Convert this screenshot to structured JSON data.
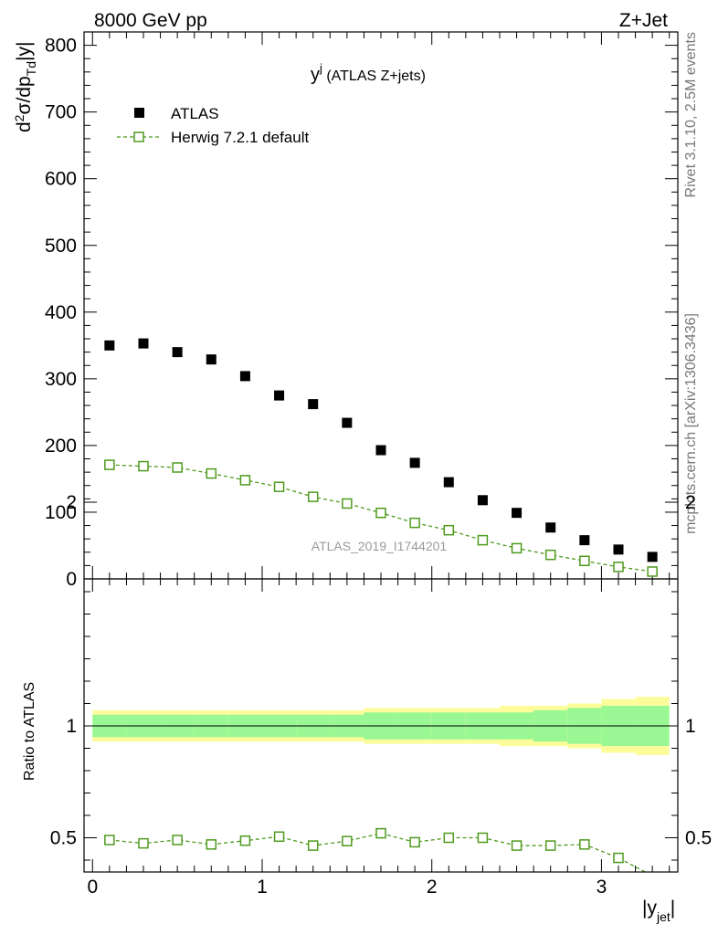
{
  "header": {
    "left": "8000 GeV pp",
    "right": "Z+Jet"
  },
  "side_labels": {
    "rivet": "Rivet 3.1.10,  2.5M events",
    "mcplots": "mcplots.cern.ch [arXiv:1306.3436]"
  },
  "chart_data": [
    {
      "type": "scatter",
      "panel": "main",
      "title_main": "y",
      "title_sup": "j",
      "title_rest": " (ATLAS Z+jets)",
      "ylabel": "d²σ/dp_Td|y|",
      "ylim": [
        0,
        820
      ],
      "yticks": [
        0,
        100,
        200,
        300,
        400,
        500,
        600,
        700,
        800
      ],
      "xlim": [
        -0.05,
        3.45
      ],
      "watermark": "ATLAS_2019_I1744201",
      "legend_position": "top-left",
      "x": [
        0.1,
        0.3,
        0.5,
        0.7,
        0.9,
        1.1,
        1.3,
        1.5,
        1.7,
        1.9,
        2.1,
        2.3,
        2.5,
        2.7,
        2.9,
        3.1,
        3.3
      ],
      "series": [
        {
          "name": "ATLAS",
          "color": "#000000",
          "marker": "filled-square",
          "values": [
            350,
            353,
            340,
            329,
            304,
            275,
            262,
            234,
            193,
            174,
            145,
            118,
            99,
            77,
            58,
            44,
            33
          ]
        },
        {
          "name": "Herwig 7.2.1 default",
          "color": "#4f9a1e",
          "marker": "open-square-dashed-line",
          "values": [
            171,
            169,
            167,
            158,
            148,
            138,
            123,
            113,
            99,
            84,
            73,
            58,
            46,
            36,
            27,
            18,
            11
          ]
        }
      ]
    },
    {
      "type": "line",
      "panel": "ratio",
      "ylabel": "Ratio to ATLAS",
      "xlabel": "|y_jet|",
      "ylim": [
        0.34,
        2.2
      ],
      "yticks": [
        0.5,
        1,
        2
      ],
      "ytick_labels": [
        "0.5",
        "1",
        "2"
      ],
      "xticks": [
        0,
        1,
        2,
        3
      ],
      "xtick_labels": [
        "0",
        "1",
        "2",
        "3"
      ],
      "xlim": [
        -0.05,
        3.45
      ],
      "bin_edges": [
        0,
        0.2,
        0.4,
        0.6,
        0.8,
        1.0,
        1.2,
        1.4,
        1.6,
        1.8,
        2.0,
        2.2,
        2.4,
        2.6,
        2.8,
        3.0,
        3.2,
        3.4
      ],
      "band_inner_color": "#99f794",
      "band_outer_color": "#fdfc9a",
      "band_inner_half": [
        0.05,
        0.05,
        0.05,
        0.05,
        0.05,
        0.05,
        0.05,
        0.05,
        0.06,
        0.06,
        0.06,
        0.06,
        0.06,
        0.07,
        0.08,
        0.09,
        0.09
      ],
      "band_outer_half": [
        0.07,
        0.07,
        0.07,
        0.07,
        0.07,
        0.07,
        0.07,
        0.07,
        0.08,
        0.08,
        0.08,
        0.08,
        0.09,
        0.09,
        0.1,
        0.12,
        0.13
      ],
      "x": [
        0.1,
        0.3,
        0.5,
        0.7,
        0.9,
        1.1,
        1.3,
        1.5,
        1.7,
        1.9,
        2.1,
        2.3,
        2.5,
        2.7,
        2.9,
        3.1,
        3.3
      ],
      "series": [
        {
          "name": "Herwig 7.2.1 default",
          "color": "#4f9a1e",
          "values": [
            0.49,
            0.475,
            0.49,
            0.47,
            0.487,
            0.505,
            0.465,
            0.485,
            0.52,
            0.48,
            0.5,
            0.5,
            0.465,
            0.465,
            0.47,
            0.41,
            0.33
          ]
        }
      ]
    }
  ]
}
